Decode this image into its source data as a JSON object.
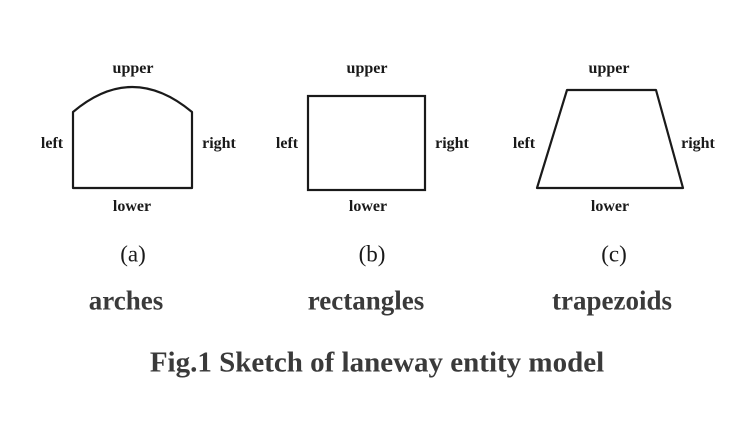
{
  "panels": [
    {
      "letter": "(a)",
      "name": "arches",
      "labels": {
        "upper": "upper",
        "lower": "lower",
        "left": "left",
        "right": "right"
      }
    },
    {
      "letter": "(b)",
      "name": "rectangles",
      "labels": {
        "upper": "upper",
        "lower": "lower",
        "left": "left",
        "right": "right"
      }
    },
    {
      "letter": "(c)",
      "name": "trapezoids",
      "labels": {
        "upper": "upper",
        "lower": "lower",
        "left": "left",
        "right": "right"
      }
    }
  ],
  "caption": "Fig.1 Sketch of laneway entity model",
  "colors": {
    "stroke": "#1a1a1a",
    "text": "#3a3a3a"
  }
}
